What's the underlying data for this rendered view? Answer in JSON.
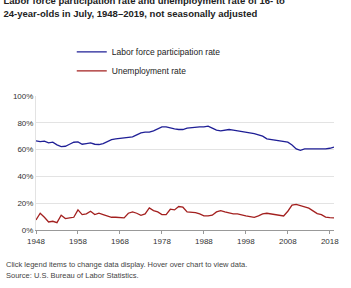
{
  "chart_data": {
    "type": "line",
    "title": "Labor force participation rate and unemployment rate of 16- to 24-year-olds in July, 1948–2019, not seasonally adjusted",
    "annotations": [
      "Click legend items to change data display. Hover over chart to view data.",
      "Source: U.S. Bureau of Labor Statistics."
    ],
    "x": [
      1948,
      1949,
      1950,
      1951,
      1952,
      1953,
      1954,
      1955,
      1956,
      1957,
      1958,
      1959,
      1960,
      1961,
      1962,
      1963,
      1964,
      1965,
      1966,
      1967,
      1968,
      1969,
      1970,
      1971,
      1972,
      1973,
      1974,
      1975,
      1976,
      1977,
      1978,
      1979,
      1980,
      1981,
      1982,
      1983,
      1984,
      1985,
      1986,
      1987,
      1988,
      1989,
      1990,
      1991,
      1992,
      1993,
      1994,
      1995,
      1996,
      1997,
      1998,
      1999,
      2000,
      2001,
      2002,
      2003,
      2004,
      2005,
      2006,
      2007,
      2008,
      2009,
      2010,
      2011,
      2012,
      2013,
      2014,
      2015,
      2016,
      2017,
      2018,
      2019
    ],
    "series": [
      {
        "name": "Labor force participation rate",
        "color": "#1f1f96",
        "values": [
          66.5,
          66.0,
          66.3,
          65.0,
          65.5,
          63.5,
          62.2,
          62.5,
          64.0,
          65.5,
          65.8,
          64.0,
          64.5,
          65.0,
          64.0,
          63.8,
          64.5,
          66.0,
          67.5,
          68.0,
          68.3,
          69.0,
          69.0,
          69.5,
          71.0,
          72.5,
          73.0,
          73.0,
          74.0,
          75.5,
          77.0,
          77.0,
          76.0,
          75.5,
          75.0,
          75.0,
          76.0,
          76.5,
          77.0,
          77.0,
          77.0,
          77.5,
          76.0,
          74.5,
          74.0,
          74.5,
          75.0,
          74.5,
          74.0,
          74.0,
          73.5,
          73.0,
          72.0,
          71.0,
          70.0,
          68.0,
          67.5,
          67.0,
          67.0,
          66.0,
          65.5,
          63.5,
          60.5,
          59.5,
          60.5,
          60.5,
          60.5,
          60.0,
          60.5,
          60.5,
          61.0,
          61.8
        ]
      },
      {
        "name": "Unemployment rate",
        "color": "#a3201f",
        "values": [
          7.5,
          12.5,
          9.5,
          6.0,
          6.5,
          5.5,
          11.0,
          8.5,
          9.0,
          9.5,
          15.0,
          11.5,
          12.0,
          14.0,
          11.5,
          12.5,
          11.5,
          10.5,
          9.5,
          9.5,
          9.0,
          9.0,
          12.5,
          13.5,
          12.5,
          11.0,
          12.0,
          16.5,
          14.5,
          13.5,
          11.5,
          11.5,
          15.5,
          15.0,
          17.5,
          17.0,
          13.5,
          13.5,
          13.0,
          12.0,
          10.5,
          10.5,
          11.0,
          13.5,
          14.5,
          13.5,
          12.5,
          12.0,
          12.0,
          11.0,
          10.5,
          10.0,
          9.5,
          10.5,
          12.0,
          12.5,
          12.0,
          11.5,
          10.5,
          10.5,
          14.0,
          18.5,
          19.1,
          18.1,
          17.1,
          16.3,
          14.3,
          12.2,
          11.5,
          9.6,
          9.2,
          9.1
        ]
      }
    ],
    "xlim": [
      1948,
      2019
    ],
    "xticks": [
      1948,
      1958,
      1968,
      1978,
      1988,
      1998,
      2008,
      2018
    ],
    "ylim": [
      0,
      100
    ],
    "yticks": [
      {
        "value": 0,
        "label": "0%"
      },
      {
        "value": 20,
        "label": "20%"
      },
      {
        "value": 40,
        "label": "40%"
      },
      {
        "value": 60,
        "label": "60%"
      },
      {
        "value": 80,
        "label": "80%"
      },
      {
        "value": 100,
        "label": "100%"
      }
    ],
    "grid": true,
    "legend": "top-left"
  }
}
